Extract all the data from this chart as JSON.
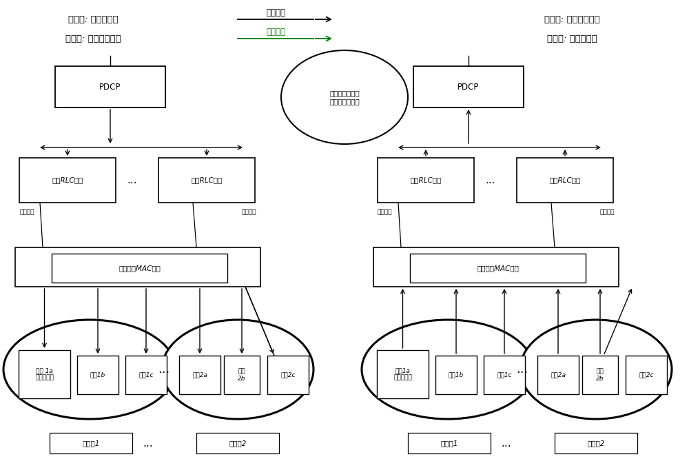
{
  "bg_color": "#ffffff",
  "legend_uplink": "上行传输",
  "legend_downlink": "下行传输",
  "uplink_color": "#000000",
  "downlink_color": "#008000",
  "legend_send1": "发送端: 终端侧设备",
  "legend_recv1": "接收端: 接入网侧设备",
  "legend_send2": "发送端: 接入网侧设备",
  "legend_recv2": "接收端: 终端侧设备",
  "ellipse_text": "特定于某个无线\n承载的重复模式",
  "pdcp_text": "PDCP",
  "rlc1_text": "第一RLC实体",
  "rlc2_text": "第二RLC实体",
  "mac_text": "至少一个MAC实体",
  "cell1a_text": "小区 1a\n（主小区）",
  "cell1b_text": "小区1b",
  "cell1c_text": "小区1c",
  "cell2a_text": "小区2a",
  "cell2b_text": "小区\n2b",
  "cell2c_text": "小区2c",
  "cell1a_text_r": "小区1a\n（主小区）",
  "group1_text": "小区组1",
  "group2_text": "小区组2",
  "dots_text": "...",
  "channel1_text": "第一通道",
  "channel2_text": "第二通道",
  "figw": 10.0,
  "figh": 6.66,
  "dpi": 100
}
